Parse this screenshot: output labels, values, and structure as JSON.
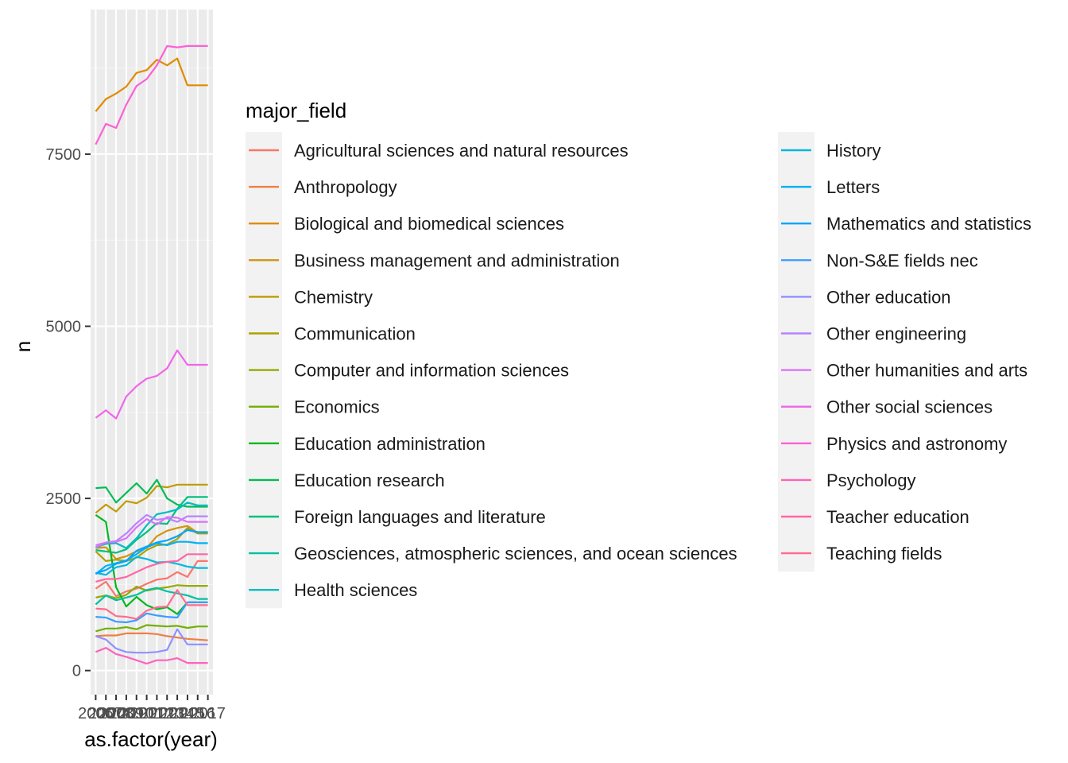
{
  "chart_data": {
    "type": "line",
    "xlabel": "as.factor(year)",
    "ylabel": "n",
    "x": [
      "2006",
      "2007",
      "2008",
      "2009",
      "2010",
      "2011",
      "2012",
      "2013",
      "2014",
      "2015",
      "2016",
      "2017"
    ],
    "y_ticks": [
      0,
      2500,
      5000,
      7500
    ],
    "y_tick_labels": [
      "0",
      "2500",
      "5000",
      "7500"
    ],
    "ylim": [
      -350,
      9600
    ],
    "grid": true,
    "legend_title": "major_field",
    "legend_position": "right",
    "series": [
      {
        "name": "Agricultural sciences and natural resources",
        "color": "#F8766D",
        "values": [
          1190,
          1290,
          1080,
          1150,
          1190,
          1260,
          1320,
          1340,
          1430,
          1360,
          1590,
          1590
        ]
      },
      {
        "name": "Anthropology",
        "color": "#EE8043",
        "values": [
          500,
          510,
          510,
          540,
          540,
          540,
          530,
          500,
          480,
          460,
          450,
          440
        ]
      },
      {
        "name": "Biological and biomedical sciences",
        "color": "#E08B00",
        "values": [
          8120,
          8300,
          8380,
          8480,
          8680,
          8720,
          8870,
          8790,
          8890,
          8500,
          8500,
          8500
        ]
      },
      {
        "name": "Business management and administration",
        "color": "#D1940C",
        "values": [
          1780,
          1790,
          1620,
          1660,
          1730,
          1780,
          1950,
          2030,
          2070,
          2100,
          2000,
          2000
        ]
      },
      {
        "name": "Chemistry",
        "color": "#C09B00",
        "values": [
          2290,
          2410,
          2310,
          2460,
          2430,
          2510,
          2680,
          2660,
          2700,
          2700,
          2700,
          2700
        ]
      },
      {
        "name": "Communication",
        "color": "#ADA200",
        "values": [
          1730,
          1590,
          1610,
          1590,
          1640,
          1750,
          1820,
          1830,
          1910,
          2070,
          1990,
          1990
        ]
      },
      {
        "name": "Computer and information sciences",
        "color": "#94A900",
        "values": [
          1060,
          1090,
          1050,
          1100,
          1220,
          1160,
          1190,
          1210,
          1240,
          1230,
          1230,
          1230
        ]
      },
      {
        "name": "Economics",
        "color": "#72B000",
        "values": [
          570,
          610,
          610,
          630,
          600,
          660,
          650,
          640,
          650,
          620,
          640,
          640
        ]
      },
      {
        "name": "Education administration",
        "color": "#00B81F",
        "values": [
          2260,
          2160,
          1210,
          930,
          1070,
          950,
          890,
          920,
          820,
          990,
          990,
          990
        ]
      },
      {
        "name": "Education research",
        "color": "#00BC56",
        "values": [
          2650,
          2660,
          2440,
          2580,
          2720,
          2570,
          2770,
          2500,
          2410,
          2380,
          2380,
          2380
        ]
      },
      {
        "name": "Foreign languages and literature",
        "color": "#00BF7D",
        "values": [
          1750,
          1730,
          1710,
          1760,
          1900,
          2010,
          2140,
          2130,
          2350,
          2520,
          2520,
          2520
        ]
      },
      {
        "name": "Geosciences, atmospheric sciences, and ocean sciences",
        "color": "#00C0A3",
        "values": [
          960,
          1090,
          1020,
          1060,
          1100,
          1170,
          1200,
          1150,
          1120,
          1090,
          1040,
          1040
        ]
      },
      {
        "name": "Health sciences",
        "color": "#00BDC2",
        "values": [
          1790,
          1840,
          1850,
          1780,
          1920,
          2110,
          2270,
          2300,
          2340,
          2440,
          2400,
          2400
        ]
      },
      {
        "name": "History",
        "color": "#00B8DE",
        "values": [
          1420,
          1390,
          1500,
          1530,
          1650,
          1620,
          1570,
          1580,
          1550,
          1510,
          1490,
          1490
        ]
      },
      {
        "name": "Letters",
        "color": "#00B1F4",
        "values": [
          1400,
          1520,
          1560,
          1600,
          1690,
          1790,
          1850,
          1820,
          1870,
          1870,
          1850,
          1850
        ]
      },
      {
        "name": "Mathematics and statistics",
        "color": "#00A5FF",
        "values": [
          1410,
          1460,
          1550,
          1590,
          1740,
          1800,
          1860,
          1890,
          1950,
          2040,
          2010,
          2010
        ]
      },
      {
        "name": "Non-S&E fields nec",
        "color": "#3A9EFF",
        "values": [
          780,
          770,
          710,
          700,
          730,
          830,
          800,
          780,
          770,
          990,
          990,
          990
        ]
      },
      {
        "name": "Other education",
        "color": "#8F91FF",
        "values": [
          500,
          450,
          320,
          270,
          260,
          260,
          270,
          300,
          600,
          380,
          380,
          380
        ]
      },
      {
        "name": "Other engineering",
        "color": "#B983FF",
        "values": [
          1790,
          1860,
          1880,
          1990,
          2140,
          2260,
          2190,
          2210,
          2160,
          2240,
          2240,
          2240
        ]
      },
      {
        "name": "Other humanities and arts",
        "color": "#DB72FB",
        "values": [
          1820,
          1860,
          1870,
          1920,
          2080,
          2200,
          2120,
          2230,
          2220,
          2160,
          2160,
          2160
        ]
      },
      {
        "name": "Other social sciences",
        "color": "#F066EA",
        "values": [
          3670,
          3780,
          3660,
          3980,
          4130,
          4240,
          4280,
          4390,
          4650,
          4440,
          4440,
          4440
        ]
      },
      {
        "name": "Physics and astronomy",
        "color": "#FC61D5",
        "values": [
          7640,
          7940,
          7880,
          8220,
          8490,
          8590,
          8790,
          9070,
          9050,
          9070,
          9070,
          9070
        ]
      },
      {
        "name": "Psychology",
        "color": "#FF62BC",
        "values": [
          270,
          330,
          240,
          200,
          150,
          100,
          150,
          150,
          180,
          110,
          110,
          110
        ]
      },
      {
        "name": "Teacher education",
        "color": "#FF67A4",
        "values": [
          1290,
          1330,
          1330,
          1360,
          1430,
          1500,
          1550,
          1580,
          1590,
          1690,
          1690,
          1690
        ]
      },
      {
        "name": "Teaching fields",
        "color": "#FF6C90",
        "values": [
          900,
          890,
          790,
          780,
          750,
          870,
          920,
          930,
          1170,
          950,
          950,
          950
        ]
      }
    ]
  }
}
